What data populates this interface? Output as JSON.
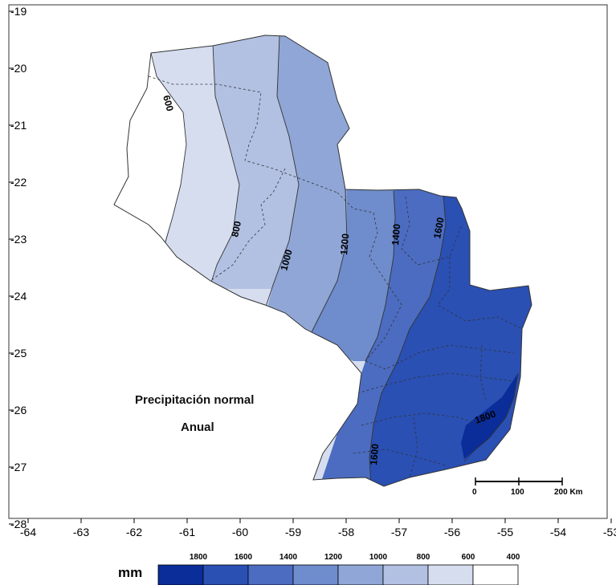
{
  "map": {
    "title_line1": "Precipitación normal",
    "title_line2": "Anual",
    "x_ticks": [
      "-64",
      "-63",
      "-62",
      "-61",
      "-60",
      "-59",
      "-58",
      "-57",
      "-56",
      "-55",
      "-54",
      "-53"
    ],
    "y_ticks": [
      "-19",
      "-20",
      "-21",
      "-22",
      "-23",
      "-24",
      "-25",
      "-26",
      "-27",
      "-28"
    ],
    "contour_labels": [
      {
        "text": "600",
        "color": "#000000"
      },
      {
        "text": "800",
        "color": "#000000"
      },
      {
        "text": "1000",
        "color": "#000000"
      },
      {
        "text": "1200",
        "color": "#000000"
      },
      {
        "text": "1400",
        "color": "#000000"
      },
      {
        "text": "1600",
        "color": "#000000"
      },
      {
        "text": "1800",
        "color": "#000000"
      },
      {
        "text": "1600",
        "color": "#000000"
      }
    ],
    "scale_bar": {
      "labels": [
        "0",
        "100",
        "200 Km"
      ]
    }
  },
  "legend": {
    "unit": "mm",
    "classes": [
      {
        "label": "1800",
        "color": "#0a2d9a"
      },
      {
        "label": "1600",
        "color": "#2a50b4"
      },
      {
        "label": "1400",
        "color": "#4b6cc0"
      },
      {
        "label": "1200",
        "color": "#6f8ccc"
      },
      {
        "label": "1000",
        "color": "#8fa6d6"
      },
      {
        "label": "800",
        "color": "#b2c0e2"
      },
      {
        "label": "600",
        "color": "#d5ddef"
      },
      {
        "label": "400",
        "color": "#ffffff"
      }
    ]
  }
}
